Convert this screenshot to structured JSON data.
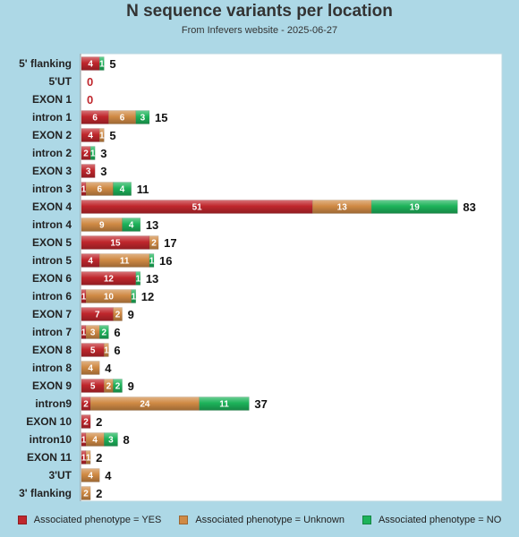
{
  "chart_data": {
    "type": "bar",
    "orientation": "horizontal",
    "stacked": true,
    "title": "N sequence variants per location",
    "subtitle": "From Infevers website - 2025-06-27",
    "categories": [
      "5' flanking",
      "5'UT",
      "EXON 1",
      "intron 1",
      "EXON 2",
      "intron 2",
      "EXON 3",
      "intron 3",
      "EXON 4",
      "intron 4",
      "EXON 5",
      "intron 5",
      "EXON 6",
      "intron 6",
      "EXON 7",
      "intron 7",
      "EXON 8",
      "intron 8",
      "EXON 9",
      "intron9",
      "EXON 10",
      "intron10",
      "EXON 11",
      "3'UT",
      "3' flanking"
    ],
    "series": [
      {
        "name": "Associated phenotype = YES",
        "color": "#c0272d",
        "values": [
          4,
          0,
          0,
          6,
          4,
          2,
          3,
          1,
          51,
          0,
          15,
          4,
          12,
          1,
          7,
          1,
          5,
          0,
          5,
          2,
          2,
          1,
          1,
          0,
          0
        ]
      },
      {
        "name": "Associated phenotype = Unknown",
        "color": "#d08a45",
        "values": [
          0,
          0,
          0,
          6,
          1,
          0,
          0,
          6,
          13,
          9,
          2,
          11,
          0,
          10,
          2,
          3,
          1,
          4,
          2,
          24,
          0,
          4,
          1,
          4,
          2
        ]
      },
      {
        "name": "Associated phenotype = NO",
        "color": "#1db35a",
        "values": [
          1,
          0,
          0,
          3,
          0,
          1,
          0,
          4,
          19,
          4,
          0,
          1,
          1,
          1,
          0,
          2,
          0,
          0,
          2,
          11,
          0,
          3,
          0,
          0,
          0
        ]
      }
    ],
    "totals": [
      5,
      0,
      0,
      15,
      5,
      3,
      3,
      11,
      83,
      13,
      17,
      16,
      13,
      12,
      9,
      6,
      6,
      4,
      9,
      37,
      2,
      8,
      2,
      4,
      2
    ],
    "xlim": [
      0,
      93
    ],
    "grid": false,
    "legend_position": "bottom"
  }
}
